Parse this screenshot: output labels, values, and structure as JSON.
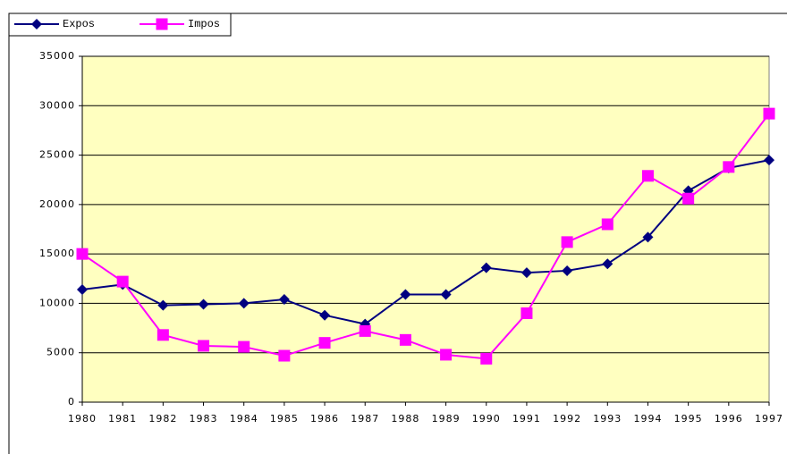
{
  "chart_data": {
    "type": "line",
    "categories": [
      "1980",
      "1981",
      "1982",
      "1983",
      "1984",
      "1985",
      "1986",
      "1987",
      "1988",
      "1989",
      "1990",
      "1991",
      "1992",
      "1993",
      "1994",
      "1995",
      "1996",
      "1997"
    ],
    "series": [
      {
        "name": "Expos",
        "color": "#000080",
        "marker": "diamond",
        "values": [
          11400,
          11900,
          9800,
          9900,
          10000,
          10400,
          8800,
          7900,
          10900,
          10900,
          13600,
          13100,
          13300,
          14000,
          16700,
          21400,
          23700,
          24500
        ]
      },
      {
        "name": "Impos",
        "color": "#ff00ff",
        "marker": "square",
        "values": [
          15000,
          12200,
          6800,
          5700,
          5600,
          4700,
          6000,
          7200,
          6300,
          4800,
          4400,
          9000,
          16200,
          18000,
          22900,
          20600,
          23800,
          29200
        ]
      }
    ],
    "ylim": [
      0,
      35000
    ],
    "yticks": [
      0,
      5000,
      10000,
      15000,
      20000,
      25000,
      30000,
      35000
    ],
    "grid": true,
    "legend": "top-left",
    "plot_background": "#ffffc0"
  }
}
